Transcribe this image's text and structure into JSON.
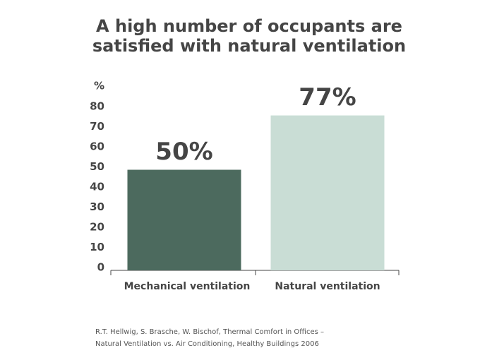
{
  "chart_data": {
    "type": "bar",
    "title": [
      "A high number of occupants are",
      "satisfied with natural ventilation"
    ],
    "ylabel": "%",
    "categories": [
      "Mechanical ventilation",
      "Natural ventilation"
    ],
    "values": [
      50,
      77
    ],
    "value_labels": [
      "50%",
      "77%"
    ],
    "colors": [
      "#4c6a5e",
      "#c9ddd5"
    ],
    "ylim": [
      0,
      80
    ],
    "yticks": [
      0,
      10,
      20,
      30,
      40,
      50,
      60,
      70,
      80
    ],
    "grid": false,
    "source": [
      "R.T. Hellwig, S. Brasche, W. Bischof, Thermal Comfort in Offices –",
      "Natural Ventilation vs. Air Conditioning, Healthy Buildings 2006"
    ]
  }
}
